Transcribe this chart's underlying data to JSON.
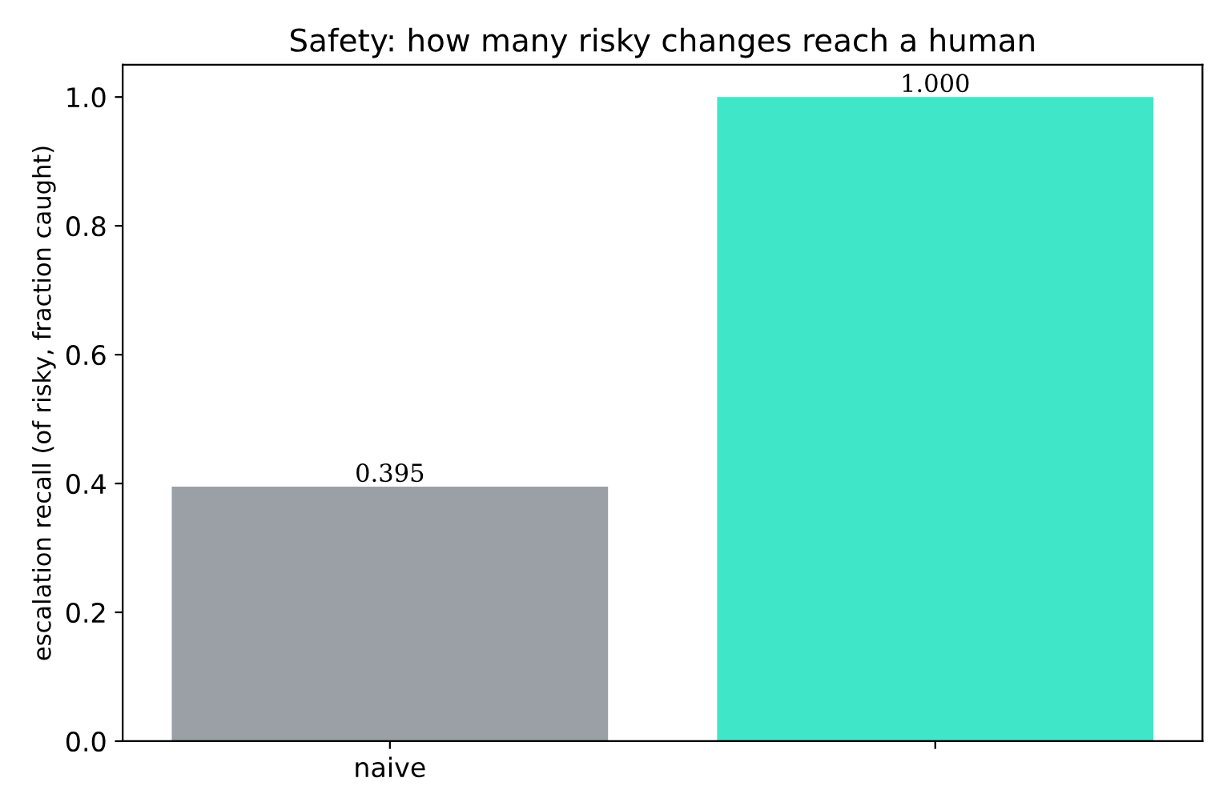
{
  "chart_data": {
    "type": "bar",
    "title": "Safety: how many risky changes reach a human",
    "ylabel": "escalation recall (of risky, fraction caught)",
    "categories": [
      "naive",
      null
    ],
    "values": [
      0.395,
      1.0
    ],
    "colors": [
      "#9aa0a6",
      "#40e6c8"
    ],
    "value_labels": [
      "0.395",
      "1.000"
    ],
    "ylim": [
      0,
      1.05
    ],
    "yticks": [
      {
        "value": 0,
        "label": "0.0"
      },
      0.2,
      0.4,
      0.6,
      0.8,
      {
        "value": 1,
        "label": "1.0"
      }
    ],
    "grid": false,
    "legend": false
  }
}
